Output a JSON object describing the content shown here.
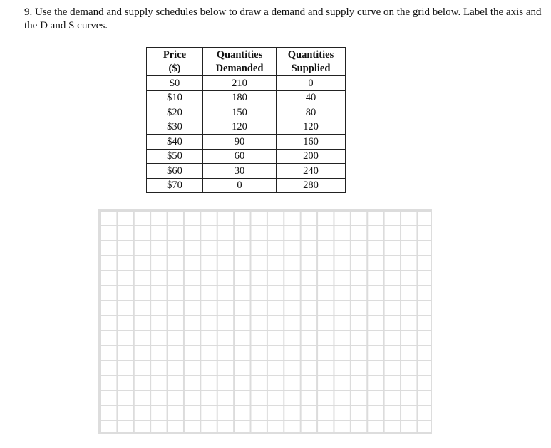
{
  "question": "9. Use the demand and supply schedules below to draw a demand and supply curve on the grid below. Label the axis and the D and S curves.",
  "table": {
    "headers": [
      [
        "Price",
        "($)"
      ],
      [
        "Quantities",
        "Demanded"
      ],
      [
        "Quantities",
        "Supplied"
      ]
    ],
    "rows": [
      [
        "$0",
        "210",
        "0"
      ],
      [
        "$10",
        "180",
        "40"
      ],
      [
        "$20",
        "150",
        "80"
      ],
      [
        "$30",
        "120",
        "120"
      ],
      [
        "$40",
        "90",
        "160"
      ],
      [
        "$50",
        "60",
        "200"
      ],
      [
        "$60",
        "30",
        "240"
      ],
      [
        "$70",
        "0",
        "280"
      ]
    ]
  },
  "grid": {
    "columns": 20,
    "rows": 15,
    "line_color": "#dcdcdc"
  }
}
